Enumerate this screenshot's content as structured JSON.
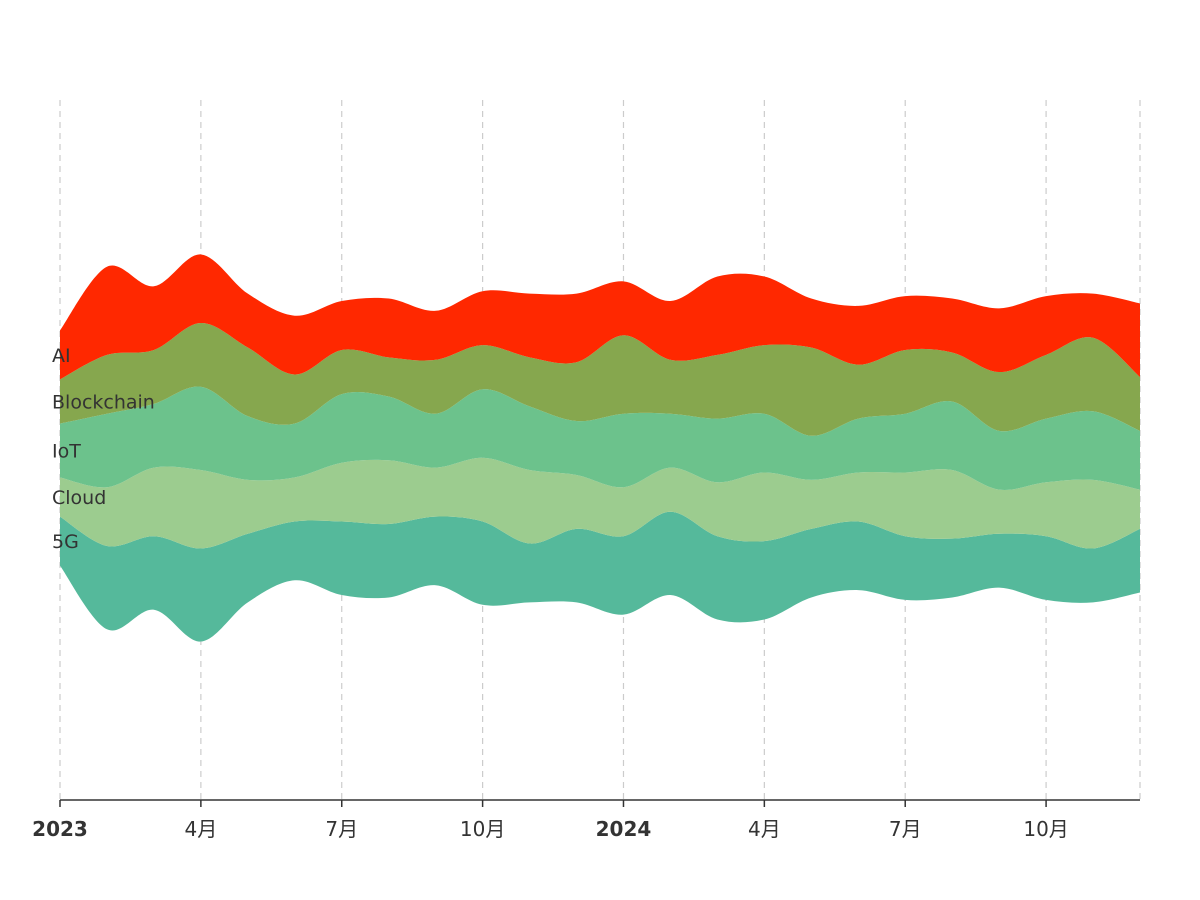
{
  "chart_data": {
    "type": "area",
    "subtype": "streamgraph",
    "title": "",
    "xlabel": "",
    "ylabel": "",
    "grid": "vertical-dashed",
    "legend": "inline-left",
    "x": [
      "2023-01",
      "2023-02",
      "2023-03",
      "2023-04",
      "2023-05",
      "2023-06",
      "2023-07",
      "2023-08",
      "2023-09",
      "2023-10",
      "2023-11",
      "2023-12",
      "2024-01",
      "2024-02",
      "2024-03",
      "2024-04",
      "2024-05",
      "2024-06",
      "2024-07",
      "2024-08",
      "2024-09",
      "2024-10",
      "2024-11",
      "2024-12"
    ],
    "x_ticks": [
      {
        "index": 0,
        "label": "2023",
        "major": true
      },
      {
        "index": 3,
        "label": "4月",
        "major": false
      },
      {
        "index": 6,
        "label": "7月",
        "major": false
      },
      {
        "index": 9,
        "label": "10月",
        "major": false
      },
      {
        "index": 12,
        "label": "2024",
        "major": true
      },
      {
        "index": 15,
        "label": "4月",
        "major": false
      },
      {
        "index": 18,
        "label": "7月",
        "major": false
      },
      {
        "index": 21,
        "label": "10月",
        "major": false
      }
    ],
    "series": [
      {
        "name": "5G",
        "color": "#55b99b",
        "values": [
          10,
          17,
          15,
          19,
          14,
          12,
          15,
          15,
          14,
          17,
          12,
          15,
          16,
          17,
          17,
          16,
          14,
          14,
          13,
          12,
          11,
          13,
          11,
          13
        ]
      },
      {
        "name": "Cloud",
        "color": "#9ccc8f",
        "values": [
          8,
          12,
          14,
          16,
          11,
          9,
          12,
          13,
          10,
          13,
          15,
          11,
          10,
          9,
          11,
          14,
          10,
          10,
          13,
          14,
          9,
          11,
          14,
          8
        ]
      },
      {
        "name": "IoT",
        "color": "#6cc28c",
        "values": [
          11,
          15,
          13,
          17,
          13,
          11,
          14,
          13,
          11,
          14,
          13,
          11,
          15,
          11,
          13,
          12,
          9,
          11,
          12,
          14,
          12,
          13,
          14,
          12
        ]
      },
      {
        "name": "Blockchain",
        "color": "#86a74e",
        "values": [
          9,
          12,
          11,
          13,
          14,
          10,
          9,
          8,
          11,
          9,
          10,
          12,
          16,
          11,
          13,
          14,
          18,
          11,
          13,
          10,
          12,
          13,
          15,
          11
        ]
      },
      {
        "name": "AI",
        "color": "#ff2800",
        "values": [
          10,
          18,
          13,
          14,
          11,
          12,
          10,
          12,
          10,
          11,
          13,
          14,
          11,
          12,
          16,
          14,
          10,
          12,
          11,
          11,
          13,
          12,
          9,
          15
        ]
      }
    ],
    "series_labels": [
      "AI",
      "Blockchain",
      "IoT",
      "Cloud",
      "5G"
    ]
  }
}
